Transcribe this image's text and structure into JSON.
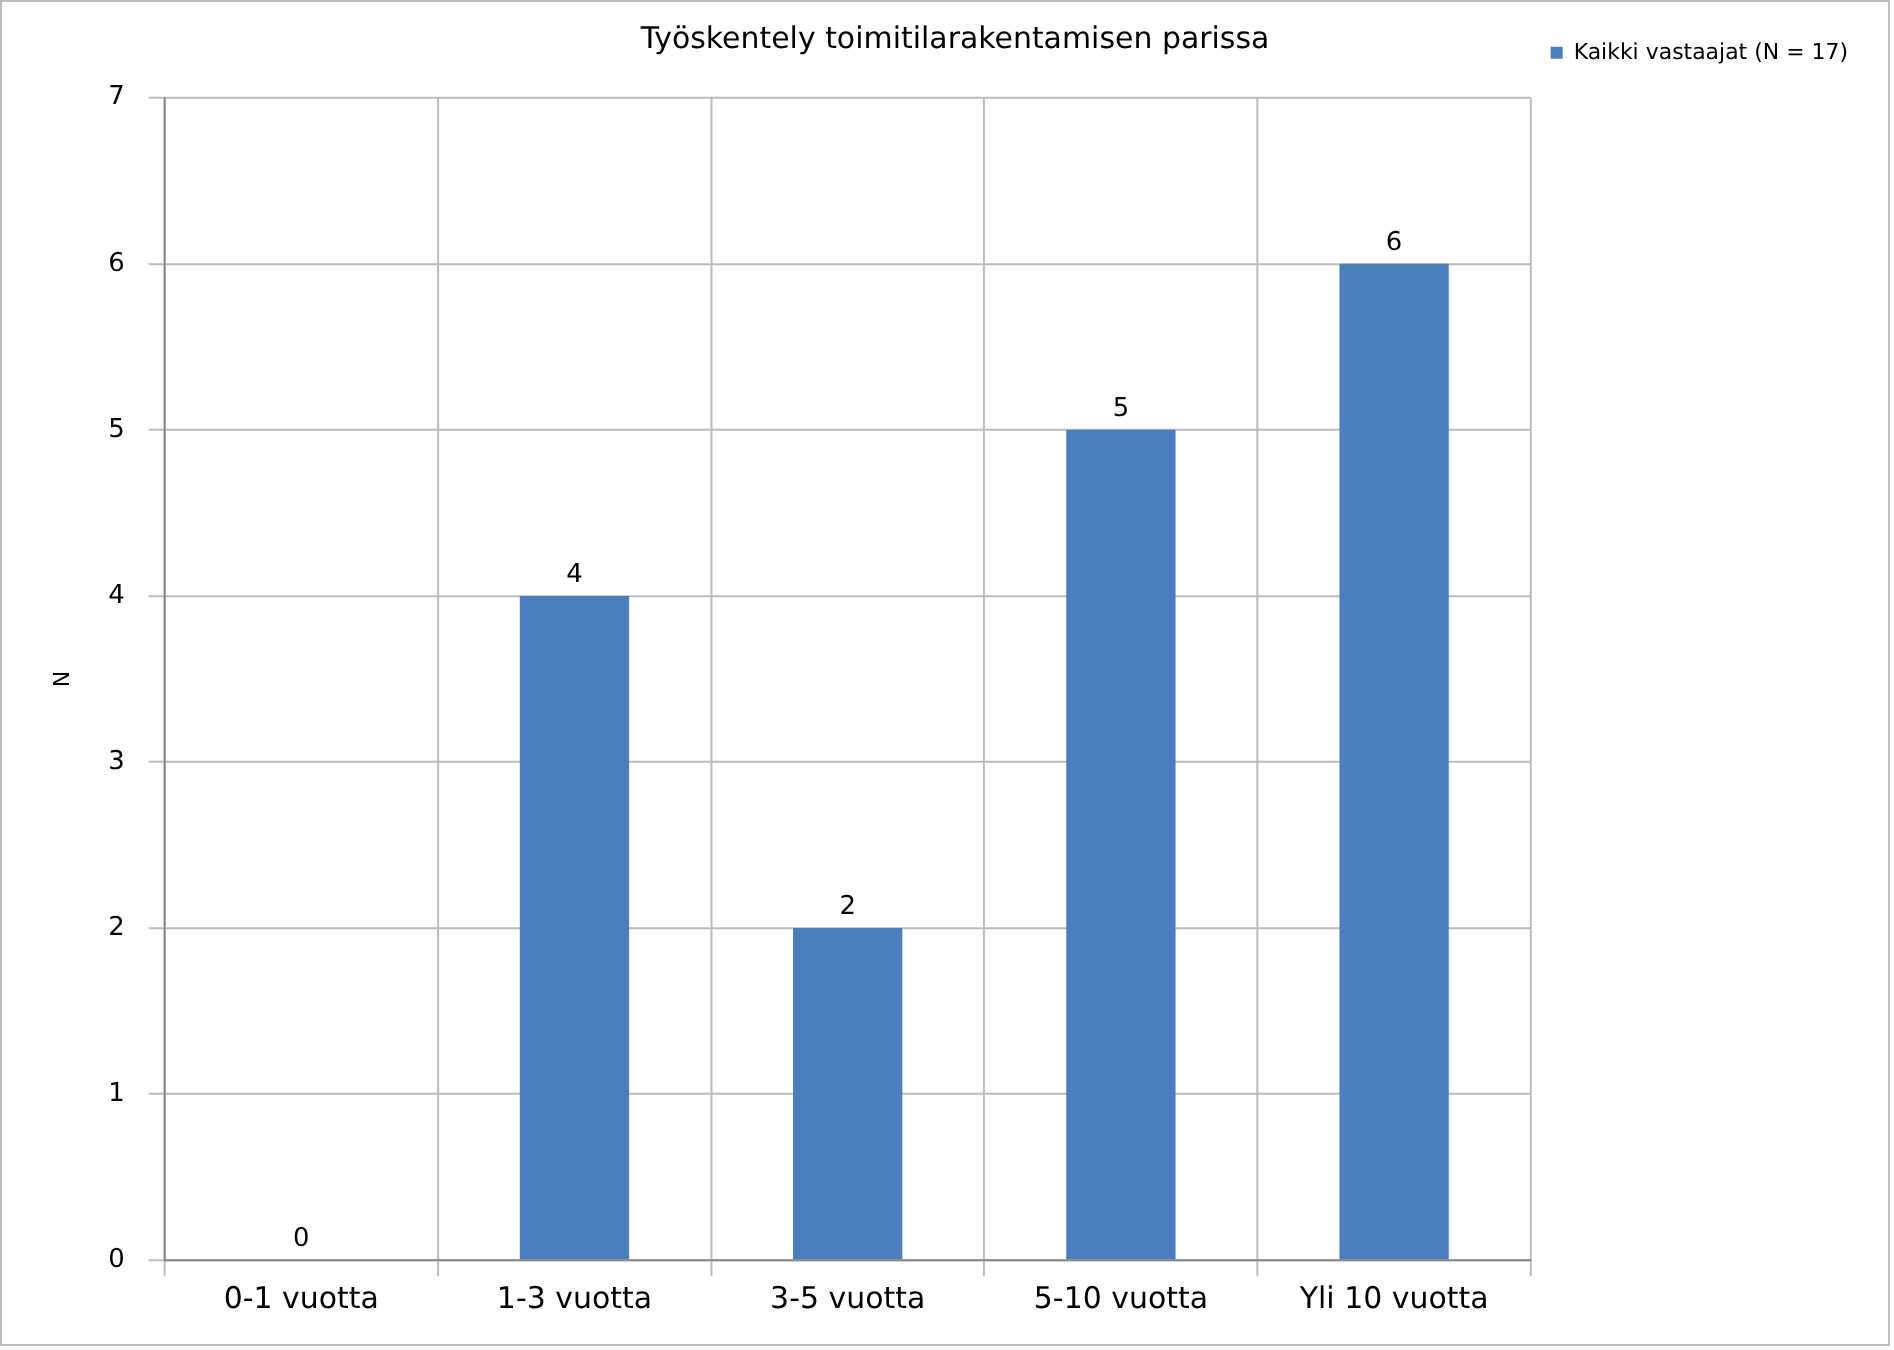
{
  "chart_data": {
    "type": "bar",
    "title": "Työskentely toimitilarakentamisen parissa",
    "ylabel": "N",
    "categories": [
      "0-1 vuotta",
      "1-3 vuotta",
      "3-5 vuotta",
      "5-10 vuotta",
      "Yli 10 vuotta"
    ],
    "series": [
      {
        "name": "Kaikki vastaajat (N = 17)",
        "color": "#4a7ebf",
        "values": [
          0,
          4,
          2,
          5,
          6
        ]
      }
    ],
    "ylim": [
      0,
      7
    ],
    "yticks": [
      0,
      1,
      2,
      3,
      4,
      5,
      6,
      7
    ],
    "grid": true,
    "legend": "top right",
    "data_labels": true
  }
}
